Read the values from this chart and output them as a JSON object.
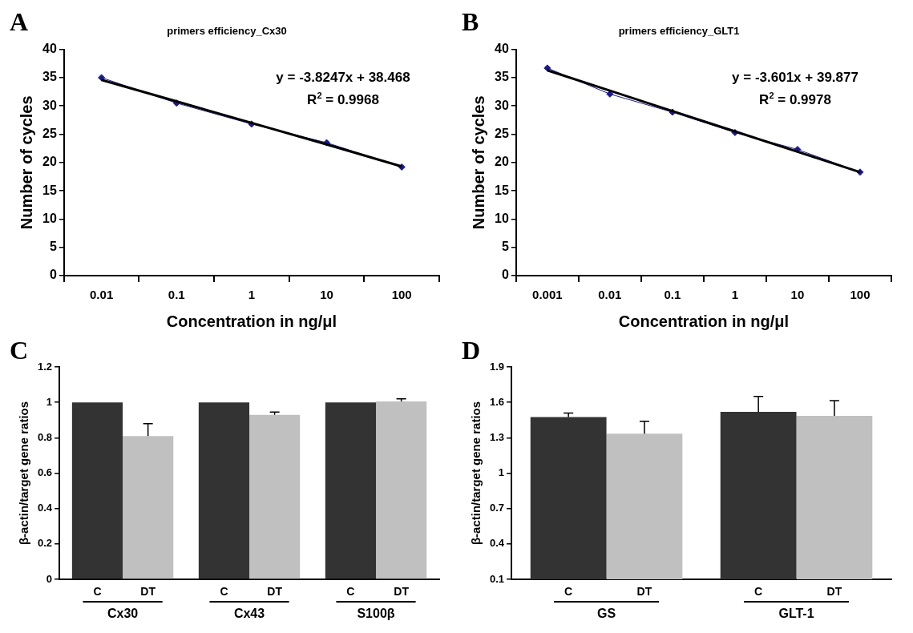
{
  "chart_data": [
    {
      "type": "line",
      "title": "primers efficiency_Cx30",
      "xlabel": "Concentration in ng/μl",
      "ylabel": "Number of cycles",
      "annotations": [
        "A",
        "y = -3.8247x + 38.468",
        "R$^{2}$ = 0.9968"
      ],
      "categories": [
        "0.01",
        "0.1",
        "1",
        "10",
        "100"
      ],
      "marker": "diamond",
      "grid": false,
      "legend": false,
      "ylim": [
        0,
        40
      ],
      "yticks": [
        0,
        5,
        10,
        15,
        20,
        25,
        30,
        35,
        40
      ],
      "series": [
        {
          "color": "#1a1a8c",
          "values": [
            35,
            30.5,
            26.8,
            23.5,
            19.2
          ]
        },
        {
          "color": "#000000",
          "marker": "none",
          "values": [
            34.6,
            30.8,
            27.0,
            23.2,
            19.3
          ]
        }
      ]
    },
    {
      "type": "line",
      "title": "primers efficiency_GLT1",
      "xlabel": "Concentration in ng/μl",
      "ylabel": "Number of cycles",
      "annotations": [
        "B",
        "y = -3.601x + 39.877",
        "R$^{2}$ = 0.9978"
      ],
      "categories": [
        "0.001",
        "0.01",
        "0.1",
        "1",
        "10",
        "100"
      ],
      "marker": "diamond",
      "grid": false,
      "legend": false,
      "ylim": [
        0,
        40
      ],
      "yticks": [
        0,
        5,
        10,
        15,
        20,
        25,
        30,
        35,
        40
      ],
      "series": [
        {
          "color": "#1a1a8c",
          "values": [
            36.7,
            32.1,
            28.9,
            25.3,
            22.3,
            18.3
          ]
        },
        {
          "color": "#000000",
          "marker": "none",
          "values": [
            36.3,
            32.7,
            29.1,
            25.5,
            21.9,
            18.3
          ]
        }
      ]
    },
    {
      "type": "bar",
      "ylabel": "β-actin/target gene ratios",
      "annotations": [
        "C"
      ],
      "categories": [
        "Cx30",
        "Cx43",
        "S100β"
      ],
      "grid": false,
      "legend": false,
      "ylim": [
        0,
        1.2
      ],
      "yticks": [
        0,
        0.2,
        0.4,
        0.6,
        0.8,
        1,
        1.2
      ],
      "series": [
        {
          "name": "C",
          "color": "#333333",
          "values": [
            1,
            1,
            1
          ],
          "errors": [
            null,
            null,
            null
          ]
        },
        {
          "name": "DT",
          "color": "#c0c0c0",
          "values": [
            0.81,
            0.93,
            1.005
          ],
          "errors": [
            [
              0.81,
              0.88
            ],
            [
              0.93,
              0.945
            ],
            [
              1.005,
              1.02
            ]
          ]
        }
      ]
    },
    {
      "type": "bar",
      "ylabel": "β-actin/target gene ratios",
      "annotations": [
        "D"
      ],
      "categories": [
        "GS",
        "GLT-1"
      ],
      "grid": false,
      "legend": false,
      "ylim": [
        0.1,
        1.9
      ],
      "yticks": [
        0.1,
        0.4,
        0.7,
        1,
        1.3,
        1.6,
        1.9
      ],
      "series": [
        {
          "name": "C",
          "color": "#333333",
          "values": [
            1.475,
            1.52
          ],
          "errors": [
            [
              1.475,
              1.51
            ],
            [
              1.52,
              1.65
            ]
          ]
        },
        {
          "name": "DT",
          "color": "#c0c0c0",
          "values": [
            1.335,
            1.485
          ],
          "errors": [
            [
              1.335,
              1.44
            ],
            [
              1.485,
              1.615
            ]
          ]
        }
      ]
    }
  ]
}
